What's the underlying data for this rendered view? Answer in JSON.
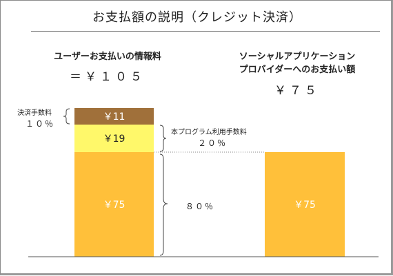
{
  "title": "お支払額の説明（クレジット決済）",
  "left": {
    "caption": "ユーザーお支払いの情報料",
    "amount": "＝￥１０５",
    "segments": [
      {
        "label": "￥75",
        "value": 75,
        "color": "#FFC03A"
      },
      {
        "label": "￥19",
        "value": 19,
        "color": "#FFF86A"
      },
      {
        "label": "￥11",
        "value": 11,
        "color": "#A0703A"
      }
    ]
  },
  "right": {
    "caption_line1": "ソーシャルアプリケーション",
    "caption_line2": "プロバイダーへのお支払い額",
    "amount": "￥７５",
    "segments": [
      {
        "label": "￥75",
        "value": 75,
        "color": "#FFC03A"
      }
    ]
  },
  "annotations": {
    "settlement_label": "決済手数料",
    "settlement_pct": "１０％",
    "platform_label": "本プログラム利用手数料",
    "platform_pct": "２０％",
    "provider_pct": "８０％"
  }
}
